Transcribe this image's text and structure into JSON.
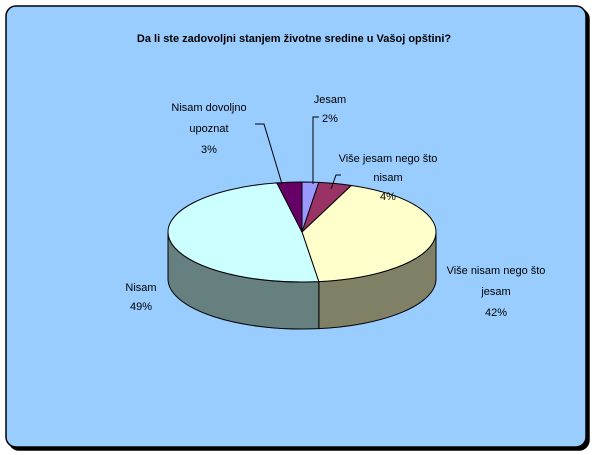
{
  "chart_data": {
    "type": "pie",
    "title": "Da li ste zadovoljni stanjem  životne sredine u Vašoj opštini?",
    "three_d": true,
    "background": "#99ccff",
    "categories": [
      "Jesam",
      "Više jesam nego što nisam",
      "Više nisam nego što jesam",
      "Nisam",
      "Nisam dovoljno upoznat"
    ],
    "values": [
      2,
      4,
      42,
      49,
      3
    ],
    "colors": [
      "#9999ff",
      "#993366",
      "#ffffcc",
      "#ccffff",
      "#660066"
    ],
    "labels": [
      {
        "lines": [
          "Jesam",
          "2%"
        ]
      },
      {
        "lines": [
          "Više jesam nego što",
          "nisam",
          "4%"
        ]
      },
      {
        "lines": [
          "Više nisam nego što",
          "jesam",
          "42%"
        ]
      },
      {
        "lines": [
          "Nisam",
          "49%"
        ]
      },
      {
        "lines": [
          "Nisam dovoljno",
          "upoznat",
          "3%"
        ]
      }
    ]
  }
}
